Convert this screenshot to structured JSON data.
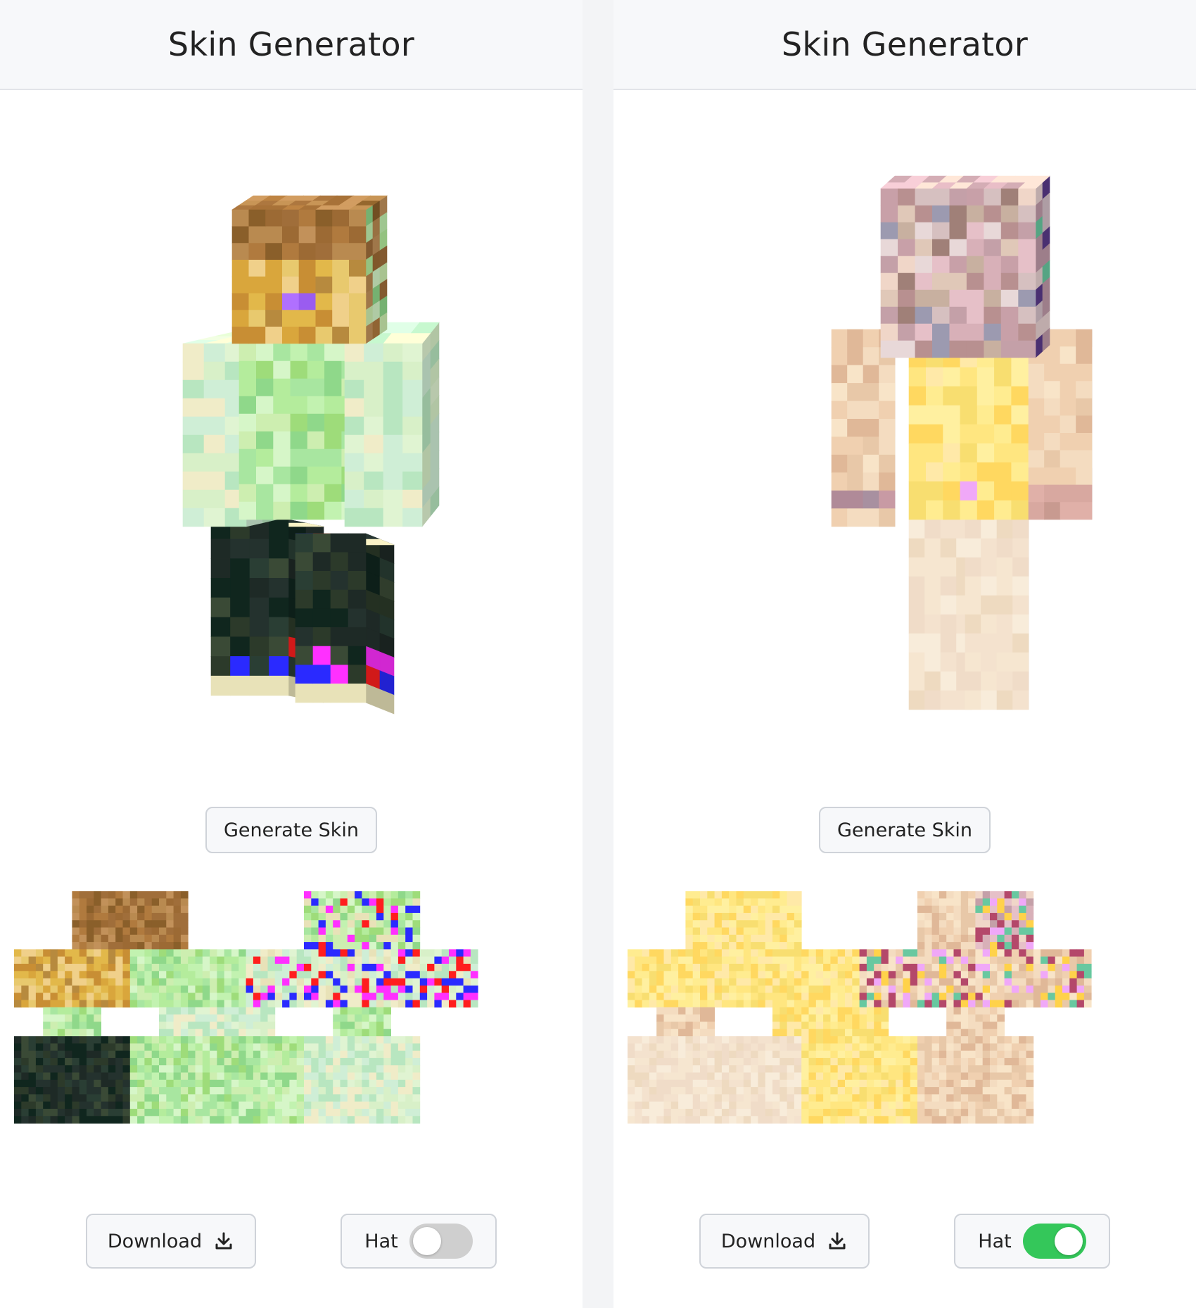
{
  "panels": [
    {
      "title": "Skin Generator",
      "generate_label": "Generate Skin",
      "download_label": "Download",
      "hat_label": "Hat",
      "hat_enabled": false,
      "icons": {
        "download": "download-icon"
      },
      "palette": {
        "hair": [
          "#a06e3a",
          "#8a5f2a",
          "#b98a50",
          "#c2915a",
          "#9c6a34",
          "#b07a3e"
        ],
        "face": [
          "#e2b84a",
          "#d9a63c",
          "#c88e34",
          "#e8c96e",
          "#b78a3e",
          "#f0d08a"
        ],
        "eyes": [
          "#9a5cf0",
          "#b070ff"
        ],
        "shirt": [
          "#a8e6a0",
          "#c2f2b0",
          "#8fd88a",
          "#d6f6c8",
          "#b4ec9c",
          "#9edc7a",
          "#cdeeb0"
        ],
        "arm": [
          "#cfeed6",
          "#e0f4d2",
          "#b8e6c0",
          "#f0ecc8",
          "#d8f0c8"
        ],
        "pants": [
          "#2c3a2a",
          "#1e2a26",
          "#3a4a36",
          "#24322e",
          "#10261e",
          "#2a3e34"
        ],
        "accents": [
          "#ff1e1e",
          "#2a2aff",
          "#ff30ff",
          "#e8e2b8"
        ]
      }
    },
    {
      "title": "Skin Generator",
      "generate_label": "Generate Skin",
      "download_label": "Download",
      "hat_label": "Hat",
      "hat_enabled": true,
      "icons": {
        "download": "download-icon"
      },
      "palette": {
        "hair": [
          "#f0d6c8",
          "#c4a0a8",
          "#e6c0c8",
          "#d8b0b8"
        ],
        "face": [
          "#c8b0a0",
          "#b89090",
          "#e0c8b8",
          "#a08078",
          "#d6c0c0",
          "#9c9ab0",
          "#e8d8d8",
          "#c8a0a8"
        ],
        "eyes": [
          "#6a6a8a",
          "#8a6a7a"
        ],
        "shirt": [
          "#ffe680",
          "#fff0a0",
          "#ffd860",
          "#ffe9a8",
          "#f8de70",
          "#ffec90"
        ],
        "arm": [
          "#f4dcc0",
          "#f0d0b0",
          "#e8c8a8",
          "#f8e4c8",
          "#e0b898"
        ],
        "pants": [
          "#f6e6d0",
          "#f0dcc8",
          "#f8ecda",
          "#eedac0",
          "#f4e2ce"
        ],
        "accents": [
          "#f0a8f8",
          "#b4486a",
          "#68c8a0",
          "#ffd24a"
        ]
      }
    }
  ]
}
